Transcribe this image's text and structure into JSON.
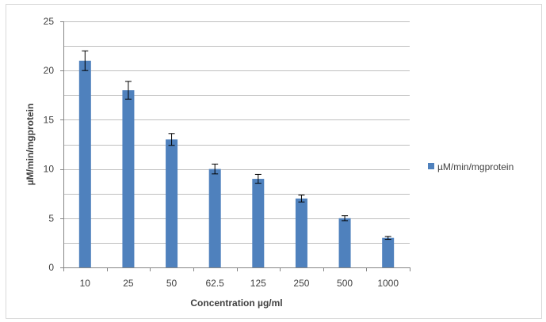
{
  "chart_data": {
    "type": "bar",
    "title": "",
    "xlabel": "Concentration µg/ml",
    "ylabel": "µM/min/mgprotein",
    "categories": [
      "10",
      "25",
      "50",
      "62.5",
      "125",
      "250",
      "500",
      "1000"
    ],
    "series": [
      {
        "name": "µM/min/mgprotein",
        "values": [
          21,
          18,
          13,
          10,
          9,
          7,
          5,
          3
        ],
        "error": [
          1.0,
          0.9,
          0.6,
          0.5,
          0.45,
          0.35,
          0.25,
          0.15
        ]
      }
    ],
    "ylim": [
      0,
      25
    ],
    "yticks": [
      0,
      5,
      10,
      15,
      20,
      25
    ],
    "grid": true,
    "legend_position": "right",
    "colors": {
      "bar": "#4F81BD",
      "grid": "#bfbfbf",
      "axis": "#868686",
      "error": "#000000"
    }
  }
}
